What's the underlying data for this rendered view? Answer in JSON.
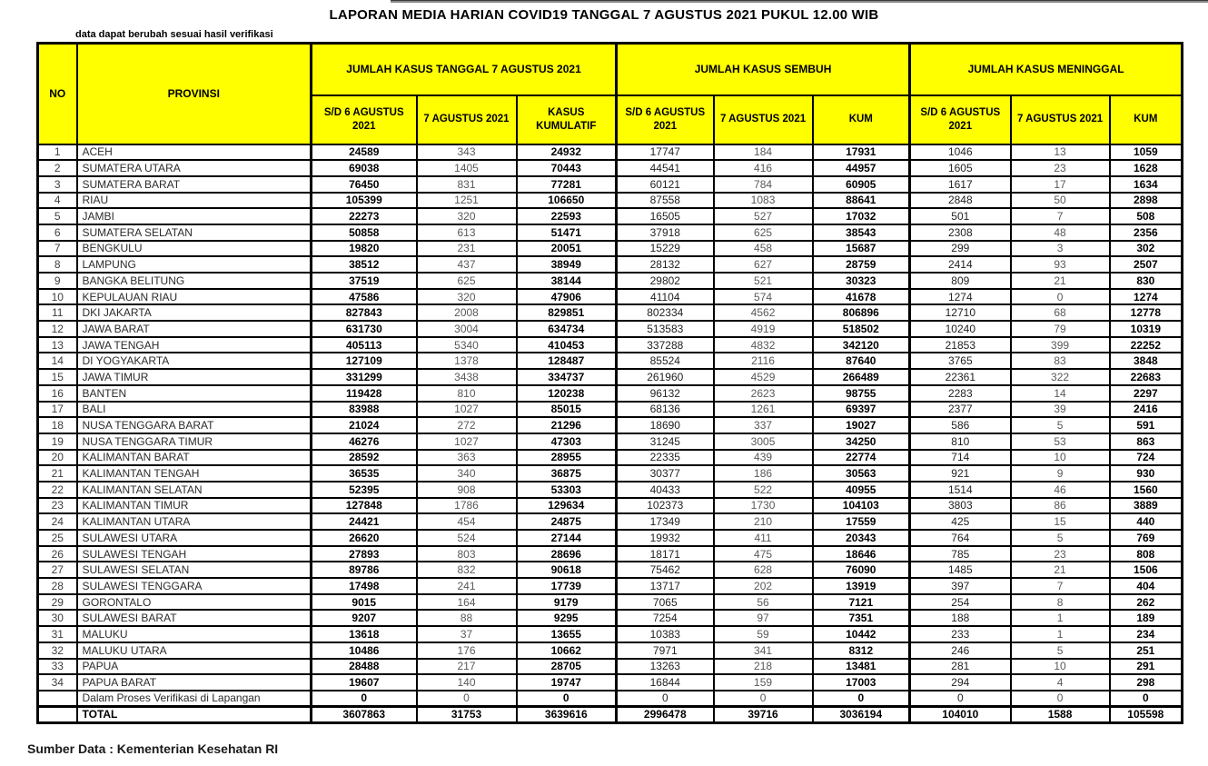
{
  "page": {
    "title": "LAPORAN MEDIA HARIAN COVID19 TANGGAL 7 AGUSTUS 2021 PUKUL 12.00 WIB",
    "note": "data dapat berubah sesuai hasil verifikasi",
    "source": "Sumber Data : Kementerian Kesehatan RI"
  },
  "colors": {
    "header_background": "#ffff00",
    "border": "#000000",
    "secondary_text": "#595959"
  },
  "table": {
    "columns": {
      "no": "NO",
      "province": "PROVINSI",
      "groups": [
        {
          "label": "JUMLAH KASUS TANGGAL 7 AGUSTUS 2021",
          "sub": [
            "S/D 6 AGUSTUS 2021",
            "7 AGUSTUS 2021",
            "KASUS KUMULATIF"
          ]
        },
        {
          "label": "JUMLAH KASUS SEMBUH",
          "sub": [
            "S/D 6 AGUSTUS 2021",
            "7 AGUSTUS 2021",
            "KUM"
          ]
        },
        {
          "label": "JUMLAH KASUS MENINGGAL",
          "sub": [
            "S/D 6 AGUSTUS 2021",
            "7 AGUSTUS 2021",
            "KUM"
          ]
        }
      ]
    },
    "rows": [
      [
        "1",
        "ACEH",
        "24589",
        "343",
        "24932",
        "17747",
        "184",
        "17931",
        "1046",
        "13",
        "1059"
      ],
      [
        "2",
        "SUMATERA UTARA",
        "69038",
        "1405",
        "70443",
        "44541",
        "416",
        "44957",
        "1605",
        "23",
        "1628"
      ],
      [
        "3",
        "SUMATERA BARAT",
        "76450",
        "831",
        "77281",
        "60121",
        "784",
        "60905",
        "1617",
        "17",
        "1634"
      ],
      [
        "4",
        "RIAU",
        "105399",
        "1251",
        "106650",
        "87558",
        "1083",
        "88641",
        "2848",
        "50",
        "2898"
      ],
      [
        "5",
        "JAMBI",
        "22273",
        "320",
        "22593",
        "16505",
        "527",
        "17032",
        "501",
        "7",
        "508"
      ],
      [
        "6",
        "SUMATERA SELATAN",
        "50858",
        "613",
        "51471",
        "37918",
        "625",
        "38543",
        "2308",
        "48",
        "2356"
      ],
      [
        "7",
        "BENGKULU",
        "19820",
        "231",
        "20051",
        "15229",
        "458",
        "15687",
        "299",
        "3",
        "302"
      ],
      [
        "8",
        "LAMPUNG",
        "38512",
        "437",
        "38949",
        "28132",
        "627",
        "28759",
        "2414",
        "93",
        "2507"
      ],
      [
        "9",
        "BANGKA BELITUNG",
        "37519",
        "625",
        "38144",
        "29802",
        "521",
        "30323",
        "809",
        "21",
        "830"
      ],
      [
        "10",
        "KEPULAUAN RIAU",
        "47586",
        "320",
        "47906",
        "41104",
        "574",
        "41678",
        "1274",
        "0",
        "1274"
      ],
      [
        "11",
        "DKI JAKARTA",
        "827843",
        "2008",
        "829851",
        "802334",
        "4562",
        "806896",
        "12710",
        "68",
        "12778"
      ],
      [
        "12",
        "JAWA BARAT",
        "631730",
        "3004",
        "634734",
        "513583",
        "4919",
        "518502",
        "10240",
        "79",
        "10319"
      ],
      [
        "13",
        "JAWA TENGAH",
        "405113",
        "5340",
        "410453",
        "337288",
        "4832",
        "342120",
        "21853",
        "399",
        "22252"
      ],
      [
        "14",
        "DI YOGYAKARTA",
        "127109",
        "1378",
        "128487",
        "85524",
        "2116",
        "87640",
        "3765",
        "83",
        "3848"
      ],
      [
        "15",
        "JAWA TIMUR",
        "331299",
        "3438",
        "334737",
        "261960",
        "4529",
        "266489",
        "22361",
        "322",
        "22683"
      ],
      [
        "16",
        "BANTEN",
        "119428",
        "810",
        "120238",
        "96132",
        "2623",
        "98755",
        "2283",
        "14",
        "2297"
      ],
      [
        "17",
        "BALI",
        "83988",
        "1027",
        "85015",
        "68136",
        "1261",
        "69397",
        "2377",
        "39",
        "2416"
      ],
      [
        "18",
        "NUSA TENGGARA BARAT",
        "21024",
        "272",
        "21296",
        "18690",
        "337",
        "19027",
        "586",
        "5",
        "591"
      ],
      [
        "19",
        "NUSA TENGGARA TIMUR",
        "46276",
        "1027",
        "47303",
        "31245",
        "3005",
        "34250",
        "810",
        "53",
        "863"
      ],
      [
        "20",
        "KALIMANTAN BARAT",
        "28592",
        "363",
        "28955",
        "22335",
        "439",
        "22774",
        "714",
        "10",
        "724"
      ],
      [
        "21",
        "KALIMANTAN TENGAH",
        "36535",
        "340",
        "36875",
        "30377",
        "186",
        "30563",
        "921",
        "9",
        "930"
      ],
      [
        "22",
        "KALIMANTAN SELATAN",
        "52395",
        "908",
        "53303",
        "40433",
        "522",
        "40955",
        "1514",
        "46",
        "1560"
      ],
      [
        "23",
        "KALIMANTAN TIMUR",
        "127848",
        "1786",
        "129634",
        "102373",
        "1730",
        "104103",
        "3803",
        "86",
        "3889"
      ],
      [
        "24",
        "KALIMANTAN UTARA",
        "24421",
        "454",
        "24875",
        "17349",
        "210",
        "17559",
        "425",
        "15",
        "440"
      ],
      [
        "25",
        "SULAWESI UTARA",
        "26620",
        "524",
        "27144",
        "19932",
        "411",
        "20343",
        "764",
        "5",
        "769"
      ],
      [
        "26",
        "SULAWESI TENGAH",
        "27893",
        "803",
        "28696",
        "18171",
        "475",
        "18646",
        "785",
        "23",
        "808"
      ],
      [
        "27",
        "SULAWESI SELATAN",
        "89786",
        "832",
        "90618",
        "75462",
        "628",
        "76090",
        "1485",
        "21",
        "1506"
      ],
      [
        "28",
        "SULAWESI TENGGARA",
        "17498",
        "241",
        "17739",
        "13717",
        "202",
        "13919",
        "397",
        "7",
        "404"
      ],
      [
        "29",
        "GORONTALO",
        "9015",
        "164",
        "9179",
        "7065",
        "56",
        "7121",
        "254",
        "8",
        "262"
      ],
      [
        "30",
        "SULAWESI BARAT",
        "9207",
        "88",
        "9295",
        "7254",
        "97",
        "7351",
        "188",
        "1",
        "189"
      ],
      [
        "31",
        "MALUKU",
        "13618",
        "37",
        "13655",
        "10383",
        "59",
        "10442",
        "233",
        "1",
        "234"
      ],
      [
        "32",
        "MALUKU UTARA",
        "10486",
        "176",
        "10662",
        "7971",
        "341",
        "8312",
        "246",
        "5",
        "251"
      ],
      [
        "33",
        "PAPUA",
        "28488",
        "217",
        "28705",
        "13263",
        "218",
        "13481",
        "281",
        "10",
        "291"
      ],
      [
        "34",
        "PAPUA BARAT",
        "19607",
        "140",
        "19747",
        "16844",
        "159",
        "17003",
        "294",
        "4",
        "298"
      ]
    ],
    "verification_row": [
      "",
      "Dalam Proses Verifikasi di Lapangan",
      "0",
      "0",
      "0",
      "0",
      "0",
      "0",
      "0",
      "0",
      "0"
    ],
    "total_row": [
      "",
      "TOTAL",
      "3607863",
      "31753",
      "3639616",
      "2996478",
      "39716",
      "3036194",
      "104010",
      "1588",
      "105598"
    ]
  }
}
